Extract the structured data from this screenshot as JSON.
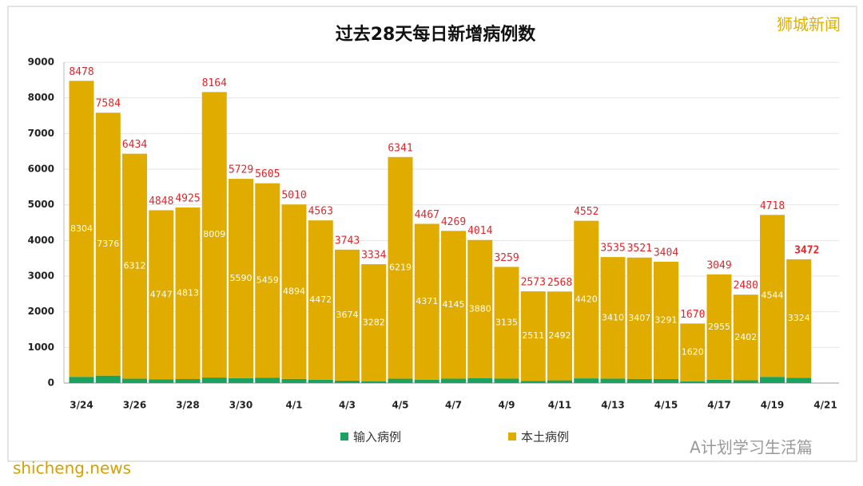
{
  "chart_data": {
    "type": "stacked-bar",
    "title": "过去28天每日新增病例数",
    "watermark": "狮城新闻",
    "source_watermark": "A计划学习生活篇",
    "site_watermark": "shicheng.news",
    "categories": [
      "3/24",
      null,
      "3/26",
      null,
      "3/28",
      null,
      "3/30",
      null,
      "4/1",
      null,
      "4/3",
      null,
      "4/5",
      null,
      "4/7",
      null,
      "4/9",
      null,
      "4/11",
      null,
      "4/13",
      null,
      "4/15",
      null,
      "4/17",
      null,
      "4/19",
      null,
      "4/21"
    ],
    "series": [
      {
        "name": "输入病例",
        "color": "#1aa260",
        "values": [
          174,
          208,
          122,
          101,
          112,
          155,
          139,
          146,
          116,
          91,
          69,
          52,
          122,
          96,
          124,
          134,
          124,
          62,
          76,
          132,
          125,
          114,
          113,
          50,
          94,
          78,
          174,
          148,
          null
        ]
      },
      {
        "name": "本土病例",
        "color": "#e0ac00",
        "values": [
          8304,
          7376,
          6312,
          4747,
          4813,
          8009,
          5590,
          5459,
          4894,
          4472,
          3674,
          3282,
          6219,
          4371,
          4145,
          3880,
          3135,
          2511,
          2492,
          4420,
          3410,
          3407,
          3291,
          1620,
          2955,
          2402,
          4544,
          3324,
          null
        ]
      }
    ],
    "totals": [
      8478,
      7584,
      6434,
      4848,
      4925,
      8164,
      5729,
      5605,
      5010,
      4563,
      3743,
      3334,
      6341,
      4467,
      4269,
      4014,
      3259,
      2573,
      2568,
      4552,
      3535,
      3521,
      3404,
      1670,
      3049,
      2480,
      4718,
      3472,
      null
    ],
    "ylim": [
      0,
      9000
    ],
    "yticks": [
      0,
      1000,
      2000,
      3000,
      4000,
      5000,
      6000,
      7000,
      8000,
      9000
    ],
    "grid": true
  }
}
